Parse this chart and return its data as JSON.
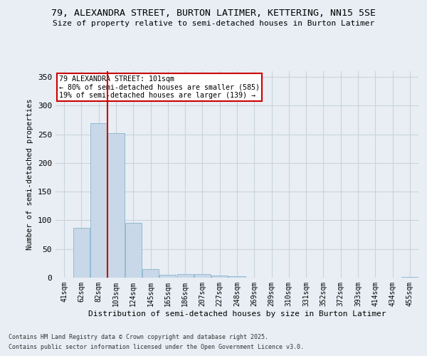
{
  "title": "79, ALEXANDRA STREET, BURTON LATIMER, KETTERING, NN15 5SE",
  "subtitle": "Size of property relative to semi-detached houses in Burton Latimer",
  "xlabel": "Distribution of semi-detached houses by size in Burton Latimer",
  "ylabel": "Number of semi-detached properties",
  "footnote1": "Contains HM Land Registry data © Crown copyright and database right 2025.",
  "footnote2": "Contains public sector information licensed under the Open Government Licence v3.0.",
  "bar_labels": [
    "41sqm",
    "62sqm",
    "82sqm",
    "103sqm",
    "124sqm",
    "145sqm",
    "165sqm",
    "186sqm",
    "207sqm",
    "227sqm",
    "248sqm",
    "269sqm",
    "289sqm",
    "310sqm",
    "331sqm",
    "352sqm",
    "372sqm",
    "393sqm",
    "414sqm",
    "434sqm",
    "455sqm"
  ],
  "bar_values": [
    0,
    87,
    270,
    252,
    95,
    15,
    5,
    6,
    6,
    4,
    3,
    0,
    0,
    0,
    0,
    0,
    0,
    0,
    0,
    0,
    1
  ],
  "bar_color": "#c8d8e8",
  "bar_edge_color": "#7aaac8",
  "grid_color": "#c8d4de",
  "background_color": "#e8eef4",
  "property_line_color": "#cc0000",
  "annotation_box_color": "#cc0000",
  "ylim": [
    0,
    360
  ],
  "yticks": [
    0,
    50,
    100,
    150,
    200,
    250,
    300,
    350
  ]
}
